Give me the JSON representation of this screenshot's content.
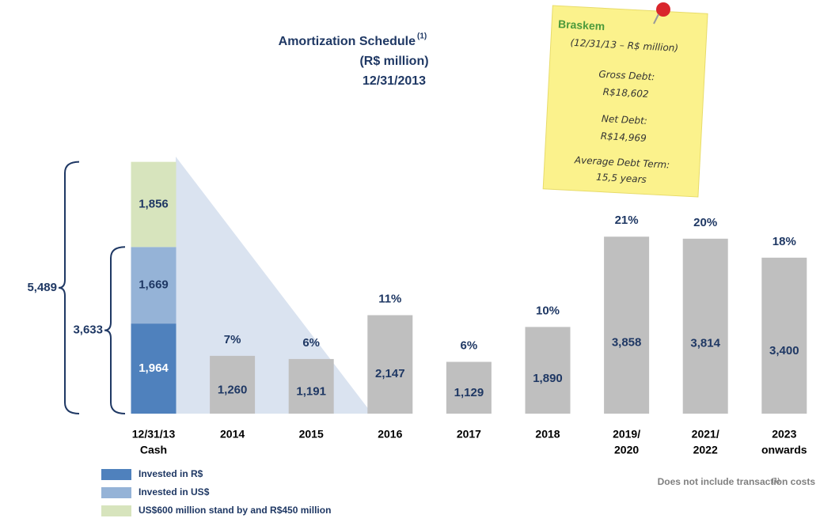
{
  "chart_data": {
    "type": "bar",
    "title": [
      "Amortization Schedule",
      "(R$ million)",
      "12/31/2013"
    ],
    "title_note": "(1)",
    "categories": [
      [
        "12/31/13",
        "Cash"
      ],
      [
        "2014"
      ],
      [
        "2015"
      ],
      [
        "2016"
      ],
      [
        "2017"
      ],
      [
        "2018"
      ],
      [
        "2019/",
        "2020"
      ],
      [
        "2021/",
        "2022"
      ],
      [
        "2023",
        "onwards"
      ]
    ],
    "series": [
      {
        "name": "Invested in R$",
        "color": "#4f81bd",
        "label_color": "#ffffff",
        "values": [
          1964,
          null,
          null,
          null,
          null,
          null,
          null,
          null,
          null
        ],
        "value_labels": [
          "1,964",
          null,
          null,
          null,
          null,
          null,
          null,
          null,
          null
        ]
      },
      {
        "name": "Invested in US$",
        "color": "#95b3d7",
        "label_color": "#1f3864",
        "values": [
          1669,
          null,
          null,
          null,
          null,
          null,
          null,
          null,
          null
        ],
        "value_labels": [
          "1,669",
          null,
          null,
          null,
          null,
          null,
          null,
          null,
          null
        ]
      },
      {
        "name": "US$600 million stand by and R$450 million",
        "color": "#d7e4bd",
        "label_color": "#1f3864",
        "values": [
          1856,
          null,
          null,
          null,
          null,
          null,
          null,
          null,
          null
        ],
        "value_labels": [
          "1,856",
          null,
          null,
          null,
          null,
          null,
          null,
          null,
          null
        ]
      },
      {
        "color": "#bfbfbf",
        "label_color": "#1f3864",
        "values": [
          null,
          1260,
          1191,
          2147,
          1129,
          1890,
          3858,
          3814,
          3400
        ],
        "value_labels": [
          null,
          "1,260",
          "1,191",
          "2,147",
          "1,129",
          "1,890",
          "3,858",
          "3,814",
          "3,400"
        ]
      }
    ],
    "share_labels": [
      null,
      "7%",
      "6%",
      "11%",
      "6%",
      "10%",
      "21%",
      "20%",
      "18%"
    ],
    "totals": [
      {
        "value": 5489,
        "label": "5,489"
      },
      {
        "value": 3633,
        "label": "3,633"
      }
    ],
    "ylim": [
      0,
      4000
    ],
    "note": {
      "brand": "Braskem",
      "lines": [
        "(12/31/13 – R$ million)",
        "Gross Debt:",
        "R$18,602",
        "Net Debt:",
        "R$14,969",
        "Average Debt Term:",
        "15,5 years"
      ]
    },
    "footnote": {
      "marker": "(1)",
      "text": "Does not include transaction costs"
    }
  }
}
